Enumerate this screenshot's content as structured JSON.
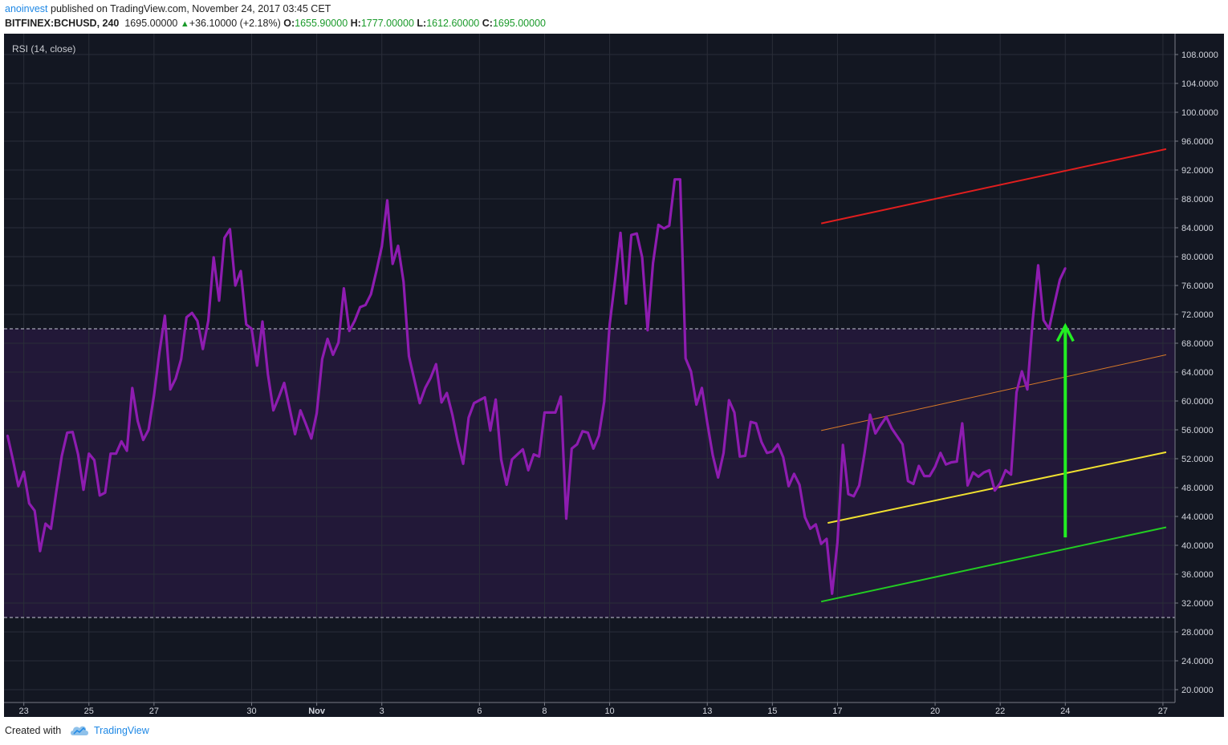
{
  "header": {
    "author": "anoinvest",
    "published_text": "published on TradingView.com, November 24, 2017 03:45 CET",
    "symbol": "BITFINEX:BCHUSD, 240",
    "last": "1695.00000",
    "change": "+36.10000 (+2.18%)",
    "o_label": "O:",
    "o_value": "1655.90000",
    "h_label": "H:",
    "h_value": "1777.00000",
    "l_label": "L:",
    "l_value": "1612.60000",
    "c_label": "C:",
    "c_value": "1695.00000"
  },
  "footer": {
    "created_with": "Created with",
    "brand": "TradingView"
  },
  "colors": {
    "background": "#131722",
    "rsi_line": "#8e1cb0",
    "band_fill": "#221838",
    "red_line": "#e01e1e",
    "orange_line": "#d87a28",
    "yellow_line": "#f0e030",
    "green_line": "#22cc22",
    "arrow": "#22ee22"
  },
  "chart_data": {
    "type": "line",
    "title": "RSI (14, close)",
    "ylim": [
      18,
      110
    ],
    "y_ticks": [
      "108.0000",
      "104.0000",
      "100.0000",
      "96.0000",
      "92.0000",
      "88.0000",
      "84.0000",
      "80.0000",
      "76.0000",
      "72.0000",
      "68.0000",
      "64.0000",
      "60.0000",
      "56.0000",
      "52.0000",
      "48.0000",
      "44.0000",
      "40.0000",
      "36.0000",
      "32.0000",
      "28.0000",
      "24.0000",
      "20.0000"
    ],
    "x_ticks": [
      {
        "label": "23",
        "d": 0.5
      },
      {
        "label": "25",
        "d": 2.5
      },
      {
        "label": "27",
        "d": 4.5
      },
      {
        "label": "30",
        "d": 7.5
      },
      {
        "label": "Nov",
        "d": 9.5
      },
      {
        "label": "3",
        "d": 11.5
      },
      {
        "label": "6",
        "d": 14.5
      },
      {
        "label": "8",
        "d": 16.5
      },
      {
        "label": "10",
        "d": 18.5
      },
      {
        "label": "13",
        "d": 21.5
      },
      {
        "label": "15",
        "d": 23.5
      },
      {
        "label": "17",
        "d": 25.5
      },
      {
        "label": "20",
        "d": 28.5
      },
      {
        "label": "22",
        "d": 30.5
      },
      {
        "label": "24",
        "d": 32.5
      },
      {
        "label": "27",
        "d": 35.5
      }
    ],
    "xlim_days": [
      0,
      36
    ],
    "levels": [
      70,
      30
    ],
    "grid": true,
    "series": [
      {
        "name": "RSI",
        "x_days": [
          0,
          0.167,
          0.333,
          0.5,
          0.667,
          0.833,
          1,
          1.167,
          1.333,
          1.5,
          1.667,
          1.833,
          2,
          2.167,
          2.333,
          2.5,
          2.667,
          2.833,
          3,
          3.167,
          3.333,
          3.5,
          3.667,
          3.833,
          4,
          4.167,
          4.333,
          4.5,
          4.667,
          4.833,
          5,
          5.167,
          5.333,
          5.5,
          5.667,
          5.833,
          6,
          6.167,
          6.333,
          6.5,
          6.667,
          6.833,
          7,
          7.167,
          7.333,
          7.5,
          7.667,
          7.833,
          8,
          8.167,
          8.333,
          8.5,
          8.667,
          8.833,
          9,
          9.167,
          9.333,
          9.5,
          9.667,
          9.833,
          10,
          10.167,
          10.333,
          10.5,
          10.667,
          10.833,
          11,
          11.167,
          11.333,
          11.5,
          11.667,
          11.833,
          12,
          12.167,
          12.333,
          12.5,
          12.667,
          12.833,
          13,
          13.167,
          13.333,
          13.5,
          13.667,
          13.833,
          14,
          14.167,
          14.333,
          14.5,
          14.667,
          14.833,
          15,
          15.167,
          15.333,
          15.5,
          15.667,
          15.833,
          16,
          16.167,
          16.333,
          16.5,
          16.667,
          16.833,
          17,
          17.167,
          17.333,
          17.5,
          17.667,
          17.833,
          18,
          18.167,
          18.333,
          18.5,
          18.667,
          18.833,
          19,
          19.167,
          19.333,
          19.5,
          19.667,
          19.833,
          20,
          20.167,
          20.333,
          20.5,
          20.667,
          20.833,
          21,
          21.167,
          21.333,
          21.5,
          21.667,
          21.833,
          22,
          22.167,
          22.333,
          22.5,
          22.667,
          22.833,
          23,
          23.167,
          23.333,
          23.5,
          23.667,
          23.833,
          24,
          24.167,
          24.333,
          24.5,
          24.667,
          24.833,
          25,
          25.167,
          25.333,
          25.5,
          25.667,
          25.833,
          26,
          26.167,
          26.333,
          26.5,
          26.667,
          26.833,
          27,
          27.167,
          27.333,
          27.5,
          27.667,
          27.833,
          28,
          28.167,
          28.333,
          28.5,
          28.667,
          28.833,
          29,
          29.167,
          29.333,
          29.5,
          29.667,
          29.833,
          30,
          30.167,
          30.333,
          30.5,
          30.667,
          30.833,
          31,
          31.167,
          31.333,
          31.5,
          31.667,
          31.833,
          32,
          32.167,
          32.333,
          32.5
        ],
        "values": [
          55.2,
          51.8,
          48.2,
          50.2,
          45.8,
          44.8,
          39.2,
          43.0,
          42.3,
          47.5,
          52.4,
          55.6,
          55.7,
          52.6,
          47.7,
          52.7,
          51.8,
          46.9,
          47.3,
          52.7,
          52.7,
          54.4,
          53.1,
          61.8,
          57.2,
          54.6,
          56.0,
          60.8,
          66.7,
          71.8,
          61.6,
          63.1,
          65.8,
          71.6,
          72.2,
          71.1,
          67.2,
          71.1,
          79.9,
          73.9,
          82.6,
          83.8,
          76.0,
          78.0,
          70.6,
          70.0,
          64.9,
          71.0,
          63.7,
          58.7,
          60.5,
          62.5,
          59.0,
          55.4,
          58.7,
          56.8,
          54.8,
          58.3,
          65.8,
          68.6,
          66.4,
          68.1,
          75.6,
          69.7,
          71.1,
          73.0,
          73.3,
          74.8,
          78.0,
          81.4,
          87.8,
          79.0,
          81.5,
          76.5,
          66.2,
          62.9,
          59.7,
          61.8,
          63.2,
          65.1,
          59.8,
          61.1,
          58.1,
          54.4,
          51.3,
          57.7,
          59.7,
          60.1,
          60.5,
          55.9,
          60.2,
          51.9,
          48.4,
          51.9,
          52.6,
          53.3,
          50.4,
          52.6,
          52.3,
          58.4,
          58.4,
          58.4,
          60.6,
          43.7,
          53.4,
          54.0,
          55.8,
          55.6,
          53.4,
          55.2,
          59.9,
          70.6,
          76.7,
          83.3,
          73.5,
          83.0,
          83.2,
          79.9,
          69.8,
          79.1,
          84.4,
          83.9,
          84.3,
          90.7,
          90.7,
          65.9,
          64.1,
          59.5,
          61.8,
          57.0,
          52.5,
          49.4,
          52.8,
          60.1,
          58.4,
          52.3,
          52.4,
          57.1,
          56.9,
          54.3,
          52.8,
          53.0,
          54.0,
          52.2,
          48.2,
          49.9,
          48.4,
          43.9,
          42.3,
          42.9,
          40.2,
          40.9,
          33.3,
          40.4,
          53.9,
          47.1,
          46.8,
          48.3,
          52.8,
          58.1,
          55.5,
          56.7,
          57.8,
          56.2,
          55.1,
          54.0,
          48.9,
          48.5,
          51.0,
          49.6,
          49.6,
          50.9,
          52.8,
          51.2,
          51.5,
          51.6,
          56.9,
          48.3,
          50.1,
          49.5,
          50.1,
          50.4,
          47.6,
          48.6,
          50.4,
          49.8,
          61.2,
          64.1,
          61.6,
          71.2,
          78.8,
          71.2,
          70.0,
          73.5,
          76.8,
          78.4
        ]
      }
    ],
    "annotations": [
      {
        "type": "trend_line",
        "color": "red",
        "from": {
          "d": 25.0,
          "v": 84.6
        },
        "to": {
          "d": 35.6,
          "v": 94.9
        }
      },
      {
        "type": "trend_line",
        "color": "orange",
        "from": {
          "d": 25.0,
          "v": 55.9
        },
        "to": {
          "d": 35.6,
          "v": 66.4
        }
      },
      {
        "type": "trend_line",
        "color": "yellow",
        "from": {
          "d": 25.2,
          "v": 43.1
        },
        "to": {
          "d": 35.6,
          "v": 52.9
        }
      },
      {
        "type": "trend_line",
        "color": "green",
        "from": {
          "d": 25.0,
          "v": 32.2
        },
        "to": {
          "d": 35.6,
          "v": 42.5
        }
      },
      {
        "type": "arrow",
        "color": "green",
        "from": {
          "d": 32.5,
          "v": 41.1
        },
        "to": {
          "d": 32.5,
          "v": 70.4
        }
      }
    ]
  }
}
